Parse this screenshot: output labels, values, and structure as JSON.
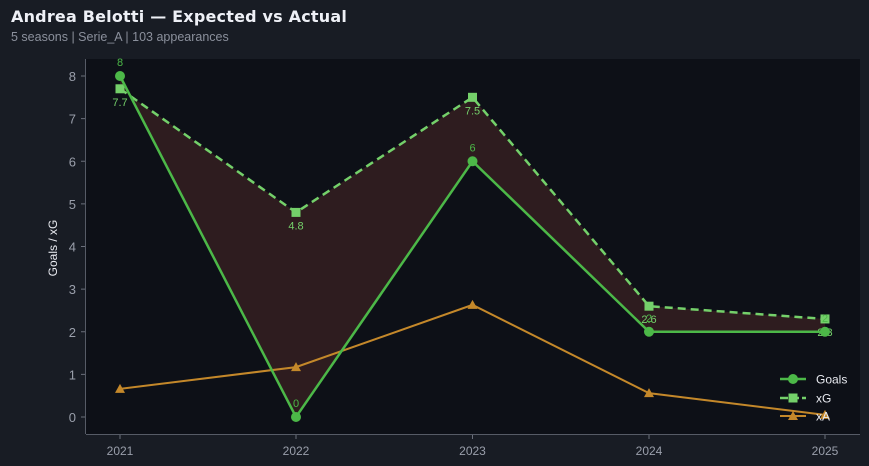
{
  "header": {
    "title": "Andrea Belotti — Expected vs Actual",
    "subtitle": "5 seasons | Serie_A | 103 appearances"
  },
  "colors": {
    "background": "#181c24",
    "plot_bg": "#0d1017",
    "goals": "#4cb848",
    "xg": "#74d06a",
    "xa": "#c4882a",
    "gap_fill": "#2e1c1f"
  },
  "chart_data": {
    "type": "line",
    "title": "Andrea Belotti — Expected vs Actual",
    "subtitle": "5 seasons | Serie_A | 103 appearances",
    "xlabel": "",
    "ylabel": "Goals / xG",
    "categories": [
      "2021",
      "2022",
      "2023",
      "2024",
      "2025"
    ],
    "ylim": [
      -0.4,
      8.4
    ],
    "yticks": [
      0,
      1,
      2,
      3,
      4,
      5,
      6,
      7,
      8
    ],
    "grid": false,
    "legend_position": "lower right",
    "series": [
      {
        "name": "Goals",
        "values": [
          8,
          0,
          6,
          2,
          2
        ],
        "marker": "circle",
        "style": "solid",
        "labels": [
          "8",
          "0",
          "6",
          "2",
          "2"
        ]
      },
      {
        "name": "xG",
        "values": [
          7.7,
          4.8,
          7.5,
          2.6,
          2.3
        ],
        "marker": "square",
        "style": "dashed",
        "labels": [
          "7.7",
          "4.8",
          "7.5",
          "2.6",
          "2.3"
        ]
      },
      {
        "name": "xA",
        "values": [
          0.66,
          1.17,
          2.63,
          0.56,
          0.05
        ],
        "marker": "triangle",
        "style": "solid"
      }
    ],
    "annotations": [
      "Shaded area between Goals and xG"
    ]
  },
  "legend": {
    "items": [
      {
        "label": "Goals"
      },
      {
        "label": "xG"
      },
      {
        "label": "xA"
      }
    ]
  }
}
